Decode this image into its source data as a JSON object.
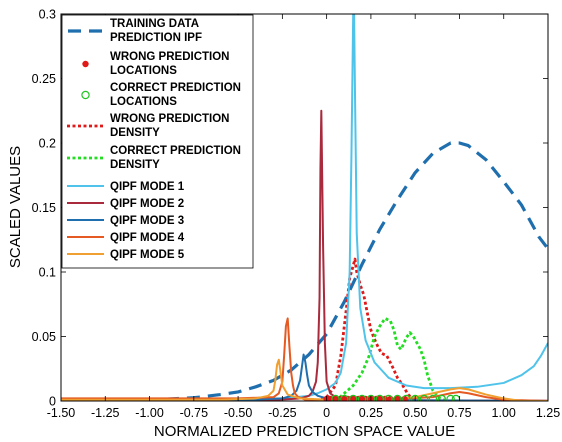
{
  "chart_data": {
    "type": "line",
    "title": "",
    "xlabel": "NORMALIZED PREDICTION SPACE VALUE",
    "ylabel": "SCALED VALUES",
    "xlim": [
      -1.5,
      1.25
    ],
    "ylim": [
      0,
      0.3
    ],
    "xticks": [
      "-1.50",
      "-1.25",
      "-1.00",
      "-0.75",
      "-0.50",
      "-0.25",
      "0",
      "0.25",
      "0.50",
      "0.75",
      "1.00",
      "1.25"
    ],
    "yticks": [
      "0",
      "0.05",
      "0.1",
      "0.15",
      "0.2",
      "0.25",
      "0.3"
    ],
    "grid": false,
    "legend_position": "top-left",
    "series": [
      {
        "name": "TRAINING DATA PREDICTION IPF",
        "style": "dashed",
        "color": "#1f6fae",
        "x": [
          -1.5,
          -1.25,
          -1.0,
          -0.9,
          -0.75,
          -0.6,
          -0.5,
          -0.4,
          -0.3,
          -0.2,
          -0.1,
          0.0,
          0.1,
          0.2,
          0.3,
          0.4,
          0.5,
          0.6,
          0.7,
          0.75,
          0.8,
          0.9,
          1.0,
          1.1,
          1.2,
          1.25
        ],
        "y": [
          0.0,
          0.0003,
          0.001,
          0.0015,
          0.0025,
          0.005,
          0.007,
          0.011,
          0.016,
          0.024,
          0.036,
          0.052,
          0.077,
          0.106,
          0.133,
          0.156,
          0.177,
          0.192,
          0.2,
          0.2,
          0.198,
          0.187,
          0.17,
          0.152,
          0.127,
          0.118
        ]
      },
      {
        "name": "WRONG PREDICTION LOCATIONS",
        "style": "marker-dot",
        "color": "#e01919",
        "x": [
          0.0,
          0.02,
          0.05,
          0.08,
          0.1,
          0.12,
          0.14,
          0.15,
          0.16,
          0.18,
          0.2,
          0.22,
          0.25,
          0.28,
          0.3,
          0.33,
          0.36,
          0.4,
          0.44
        ],
        "y": [
          0,
          0,
          0,
          0,
          0,
          0,
          0,
          0,
          0,
          0,
          0,
          0,
          0,
          0,
          0,
          0,
          0,
          0,
          0
        ]
      },
      {
        "name": "CORRECT PREDICTION LOCATIONS",
        "style": "marker-circle",
        "color": "#22c422",
        "x": [
          0.05,
          0.1,
          0.15,
          0.2,
          0.25,
          0.3,
          0.35,
          0.4,
          0.45,
          0.5,
          0.55,
          0.6,
          0.65,
          0.7,
          0.73
        ],
        "y": [
          0,
          0,
          0,
          0,
          0,
          0,
          0,
          0,
          0,
          0,
          0,
          0,
          0,
          0,
          0
        ]
      },
      {
        "name": "WRONG PREDICTION DENSITY",
        "style": "dotted",
        "color": "#e01919",
        "x": [
          -0.06,
          0.0,
          0.05,
          0.08,
          0.11,
          0.13,
          0.15,
          0.16,
          0.17,
          0.19,
          0.21,
          0.23,
          0.25,
          0.27,
          0.29,
          0.31,
          0.34,
          0.37,
          0.4,
          0.43,
          0.46,
          0.5
        ],
        "y": [
          0.0,
          0.003,
          0.012,
          0.035,
          0.07,
          0.095,
          0.105,
          0.11,
          0.1,
          0.09,
          0.082,
          0.068,
          0.055,
          0.048,
          0.042,
          0.037,
          0.035,
          0.027,
          0.018,
          0.012,
          0.005,
          0.0
        ]
      },
      {
        "name": "CORRECT PREDICTION DENSITY",
        "style": "dotted",
        "color": "#22dd22",
        "x": [
          0.05,
          0.1,
          0.15,
          0.2,
          0.24,
          0.27,
          0.3,
          0.33,
          0.36,
          0.38,
          0.4,
          0.42,
          0.45,
          0.47,
          0.49,
          0.51,
          0.53,
          0.55,
          0.57,
          0.6,
          0.64,
          0.68
        ],
        "y": [
          0.0,
          0.006,
          0.012,
          0.022,
          0.035,
          0.05,
          0.058,
          0.064,
          0.062,
          0.055,
          0.043,
          0.04,
          0.049,
          0.053,
          0.05,
          0.045,
          0.04,
          0.032,
          0.02,
          0.008,
          0.002,
          0.0
        ]
      },
      {
        "name": "QIPF MODE 1",
        "style": "solid",
        "color": "#4fc3ea",
        "x": [
          -1.5,
          -1.0,
          -0.5,
          -0.25,
          -0.1,
          -0.05,
          0.0,
          0.05,
          0.08,
          0.11,
          0.13,
          0.14,
          0.15,
          0.155,
          0.16,
          0.17,
          0.19,
          0.22,
          0.27,
          0.35,
          0.45,
          0.55,
          0.7,
          0.85,
          1.0,
          1.1,
          1.17,
          1.21,
          1.25
        ],
        "y": [
          0.0,
          0.0,
          0.001,
          0.002,
          0.004,
          0.006,
          0.009,
          0.014,
          0.022,
          0.045,
          0.1,
          0.19,
          0.3,
          0.3,
          0.24,
          0.13,
          0.072,
          0.047,
          0.03,
          0.018,
          0.012,
          0.01,
          0.01,
          0.011,
          0.014,
          0.02,
          0.027,
          0.035,
          0.045
        ]
      },
      {
        "name": "QIPF MODE 2",
        "style": "solid",
        "color": "#a82a3c",
        "x": [
          -1.5,
          -0.6,
          -0.3,
          -0.2,
          -0.15,
          -0.1,
          -0.08,
          -0.06,
          -0.05,
          -0.04,
          -0.035,
          -0.03,
          -0.02,
          -0.01,
          0.0,
          0.02,
          0.05,
          0.1,
          0.2,
          0.4,
          0.8,
          1.25
        ],
        "y": [
          0.0005,
          0.0007,
          0.001,
          0.0015,
          0.002,
          0.004,
          0.007,
          0.015,
          0.03,
          0.08,
          0.18,
          0.225,
          0.12,
          0.045,
          0.015,
          0.006,
          0.003,
          0.002,
          0.001,
          0.0007,
          0.0004,
          0.0002
        ]
      },
      {
        "name": "QIPF MODE 3",
        "style": "solid",
        "color": "#1f6fae",
        "x": [
          -1.5,
          -0.5,
          -0.25,
          -0.2,
          -0.17,
          -0.15,
          -0.14,
          -0.13,
          -0.12,
          -0.11,
          -0.1,
          -0.08,
          -0.05,
          0.0,
          0.2,
          0.5,
          1.0,
          1.25
        ],
        "y": [
          0.0,
          0.0005,
          0.002,
          0.004,
          0.008,
          0.016,
          0.026,
          0.036,
          0.03,
          0.02,
          0.012,
          0.007,
          0.004,
          0.002,
          0.001,
          0.0005,
          0.0002,
          0.0
        ]
      },
      {
        "name": "QIPF MODE 4",
        "style": "solid",
        "color": "#e55a22",
        "x": [
          -1.5,
          -0.5,
          -0.3,
          -0.27,
          -0.25,
          -0.24,
          -0.23,
          -0.22,
          -0.21,
          -0.2,
          -0.19,
          -0.18,
          -0.16,
          -0.12,
          0.0,
          0.3,
          0.6,
          0.7,
          0.75,
          0.8,
          0.9,
          1.0,
          1.25
        ],
        "y": [
          0.002,
          0.002,
          0.003,
          0.006,
          0.015,
          0.035,
          0.058,
          0.064,
          0.042,
          0.022,
          0.012,
          0.006,
          0.003,
          0.001,
          0.001,
          0.001,
          0.003,
          0.006,
          0.007,
          0.006,
          0.003,
          0.001,
          0.0
        ]
      },
      {
        "name": "QIPF MODE 5",
        "style": "solid",
        "color": "#f0a030",
        "x": [
          -1.5,
          -0.6,
          -0.4,
          -0.33,
          -0.3,
          -0.29,
          -0.28,
          -0.27,
          -0.26,
          -0.25,
          -0.22,
          -0.15,
          0.0,
          0.3,
          0.5,
          0.6,
          0.7,
          0.75,
          0.8,
          0.9,
          1.0,
          1.1,
          1.25
        ],
        "y": [
          0.001,
          0.001,
          0.002,
          0.004,
          0.008,
          0.016,
          0.028,
          0.032,
          0.022,
          0.012,
          0.005,
          0.002,
          0.001,
          0.001,
          0.003,
          0.006,
          0.009,
          0.01,
          0.009,
          0.005,
          0.002,
          0.0,
          0.0
        ]
      }
    ]
  }
}
